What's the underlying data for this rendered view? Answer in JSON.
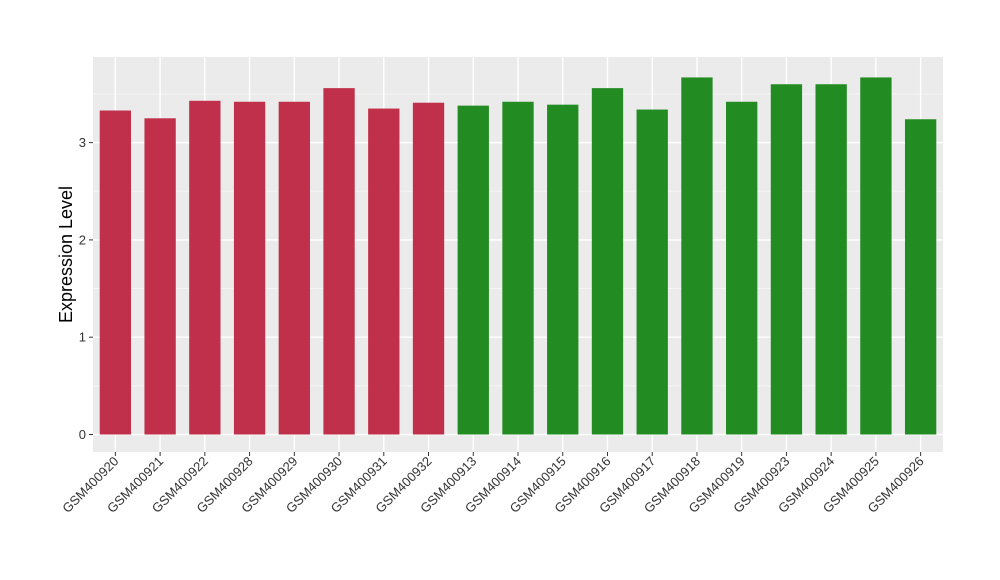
{
  "chart_data": {
    "type": "bar",
    "title": "",
    "xlabel": "",
    "ylabel": "Expression Level",
    "ylim": [
      -0.18,
      3.88
    ],
    "yticks": [
      0,
      1,
      2,
      3
    ],
    "ytick_labels": [
      "0",
      "1",
      "2",
      "3"
    ],
    "grid": true,
    "legend": "none",
    "categories": [
      "GSM400920",
      "GSM400921",
      "GSM400922",
      "GSM400928",
      "GSM400929",
      "GSM400930",
      "GSM400931",
      "GSM400932",
      "GSM400913",
      "GSM400914",
      "GSM400915",
      "GSM400916",
      "GSM400917",
      "GSM400918",
      "GSM400919",
      "GSM400923",
      "GSM400924",
      "GSM400925",
      "GSM400926"
    ],
    "values": [
      3.33,
      3.25,
      3.43,
      3.42,
      3.42,
      3.56,
      3.35,
      3.41,
      3.38,
      3.42,
      3.39,
      3.56,
      3.34,
      3.67,
      3.42,
      3.6,
      3.6,
      3.67,
      3.24
    ],
    "bar_colors": [
      "#c1304a",
      "#c1304a",
      "#c1304a",
      "#c1304a",
      "#c1304a",
      "#c1304a",
      "#c1304a",
      "#c1304a",
      "#228b22",
      "#228b22",
      "#228b22",
      "#228b22",
      "#228b22",
      "#228b22",
      "#228b22",
      "#228b22",
      "#228b22",
      "#228b22",
      "#228b22"
    ]
  },
  "colors": {
    "panel_background": "#ebebeb",
    "grid_major": "#ffffff",
    "grid_minor": "#f5f5f5",
    "group_1": "#c1304a",
    "group_2": "#228b22"
  }
}
